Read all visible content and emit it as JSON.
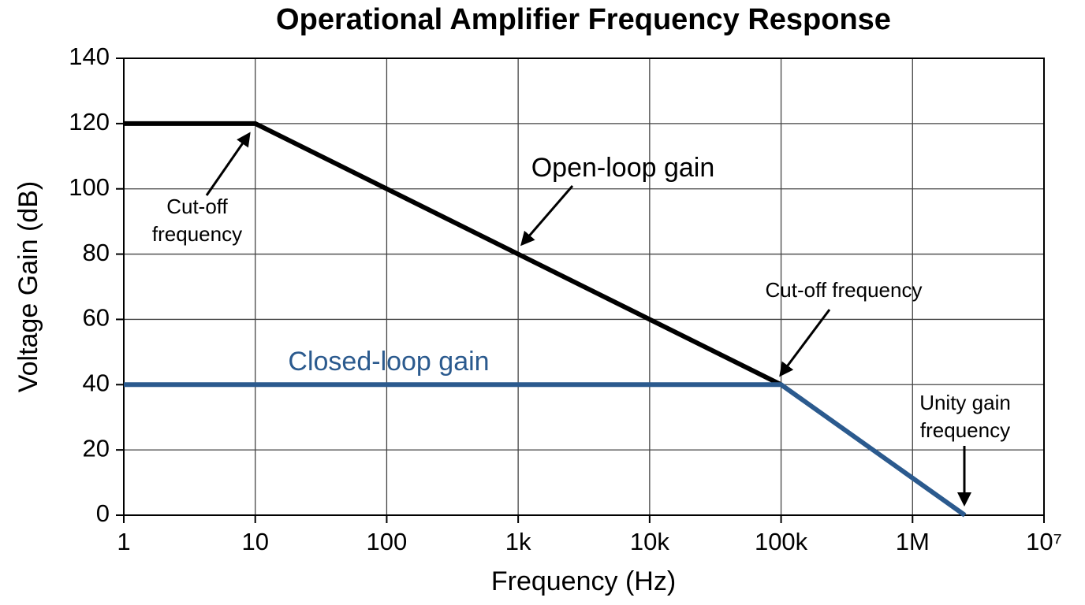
{
  "chart_data": {
    "type": "line",
    "title": "Operational Amplifier Frequency Response",
    "x_label": "Frequency (Hz)",
    "y_label": "Voltage Gain (dB)",
    "xscale": "log",
    "grid": true,
    "xlim": [
      1,
      10000000
    ],
    "xticks": [
      1,
      10,
      100,
      {
        "value": 1000,
        "label": "1k"
      },
      {
        "value": 10000,
        "label": "10k"
      },
      {
        "value": 100000,
        "label": "100k"
      },
      {
        "value": 1000000,
        "label": "1M"
      },
      {
        "value": 10000000,
        "label": "10⁷"
      }
    ],
    "ylim": [
      0,
      140
    ],
    "yticks": [
      0,
      20,
      40,
      60,
      80,
      100,
      120,
      140
    ],
    "series": [
      {
        "name": "Open-loop gain",
        "color": "#000000",
        "x": [
          1,
          10,
          100000
        ],
        "values": [
          120,
          120,
          40
        ]
      },
      {
        "name": "Closed-loop gain",
        "color": "#2b5a8e",
        "x": [
          1,
          100000,
          2500000
        ],
        "values": [
          40,
          40,
          0
        ]
      }
    ],
    "annotations": [
      [
        "Cut-off",
        "frequency"
      ],
      [
        "Cut-off frequency"
      ],
      [
        "Unity gain",
        "frequency"
      ]
    ]
  }
}
